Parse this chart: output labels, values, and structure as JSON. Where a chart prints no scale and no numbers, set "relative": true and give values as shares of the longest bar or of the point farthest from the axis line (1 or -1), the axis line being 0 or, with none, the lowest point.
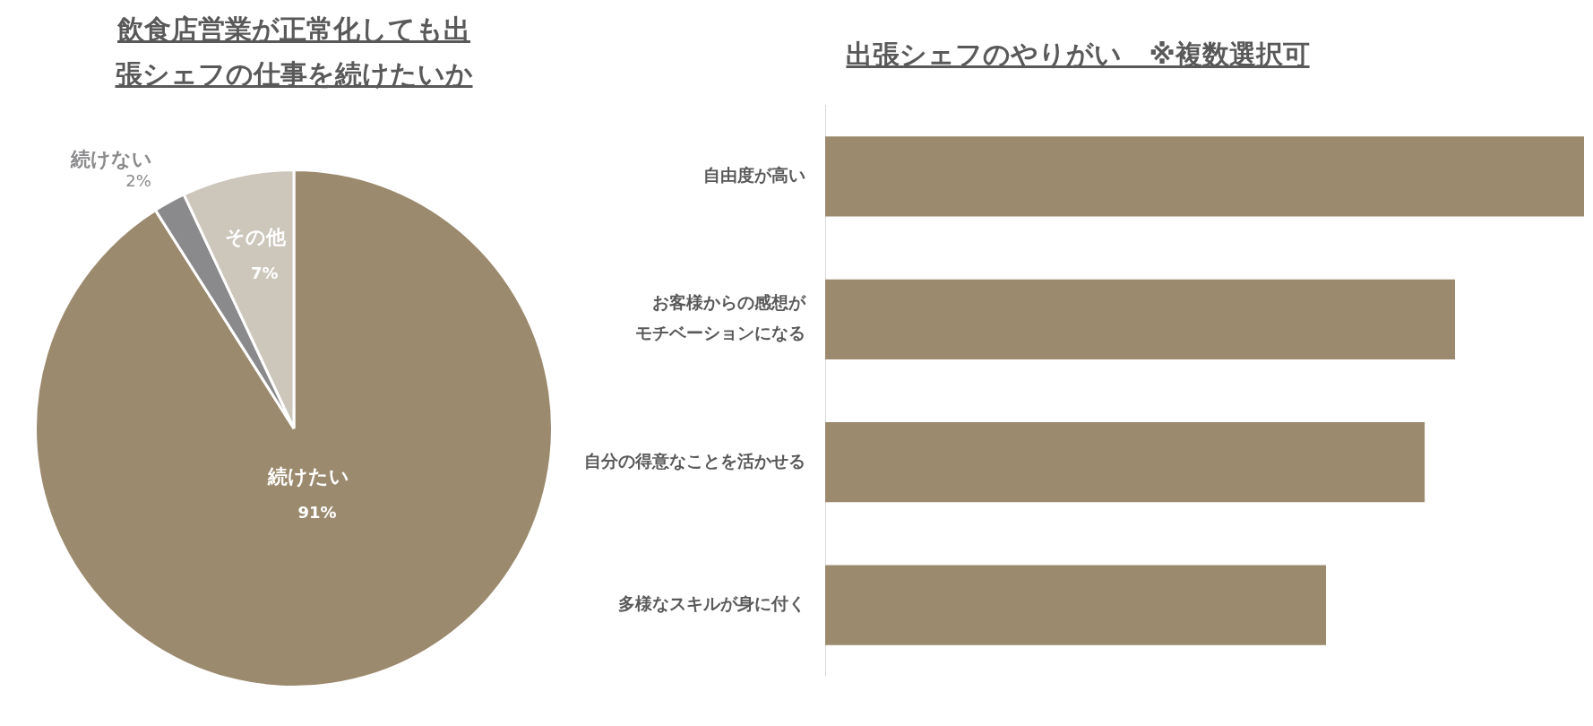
{
  "chart_data": [
    {
      "type": "pie",
      "title": "飲食店営業が正常化しても出張シェフの仕事を続けたいか",
      "categories": [
        "続けたい",
        "続けない",
        "その他"
      ],
      "values": [
        91,
        2,
        7
      ],
      "colors": [
        "#9c8a6e",
        "#8a8a8c",
        "#cdc6bb"
      ],
      "value_labels": [
        "91%",
        "2%",
        "7%"
      ],
      "legend": false
    },
    {
      "type": "bar",
      "title": "出張シェフのやりがい　※複数選択可",
      "orientation": "horizontal",
      "relative": true,
      "categories": [
        "自由度が高い",
        "お客様からの感想がモチベーションになる",
        "自分の得意なことを活かせる",
        "多様なスキルが身に付く"
      ],
      "values": [
        1,
        0.83,
        0.79,
        0.66
      ],
      "color": "#9c8a6e",
      "legend": false
    }
  ]
}
